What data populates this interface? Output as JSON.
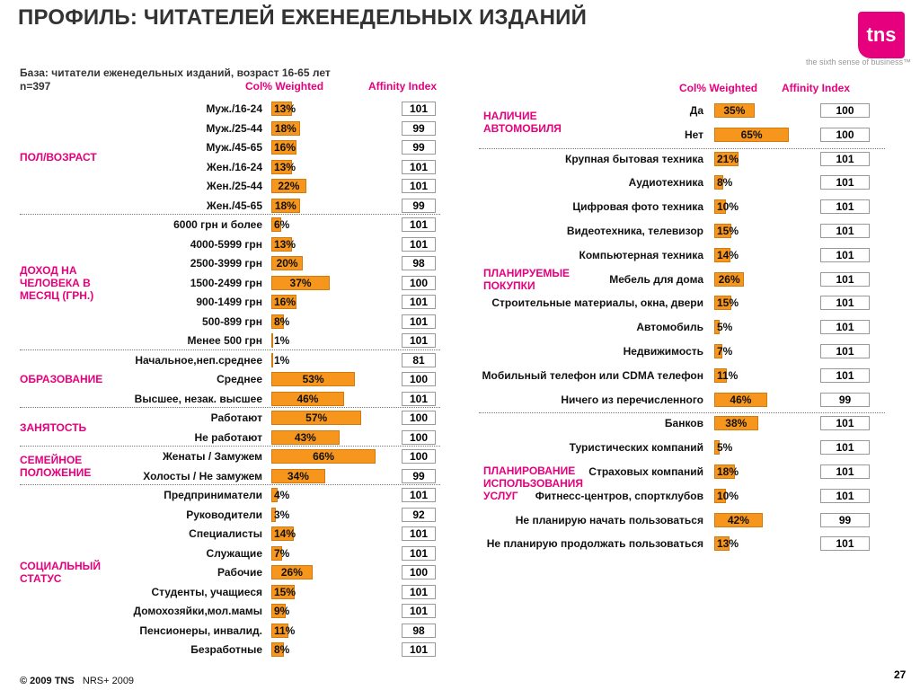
{
  "title": "ПРОФИЛЬ: ЧИТАТЕЛЕЙ ЕЖЕНЕДЕЛЬНЫХ ИЗДАНИЙ",
  "logo": {
    "text": "tns",
    "color": "#e6007e",
    "tagline": "the sixth sense of business™"
  },
  "base": {
    "line1": "База: читатели еженедельных изданий, возраст 16-65 лет",
    "line2": "n=397"
  },
  "headers": {
    "colpct": "Col% Weighted",
    "affinity": "Affinity Index"
  },
  "colors": {
    "bar": "#f7961d",
    "accent": "#e6007e"
  },
  "footer": {
    "copyright": "© 2009 TNS",
    "source": "NRS+ 2009",
    "page": "27"
  },
  "chart_data": {
    "type": "bar",
    "orientation": "horizontal",
    "value_unit": "%",
    "panels": [
      {
        "groups": [
          {
            "label": "ПОЛ/ВОЗРАСТ",
            "rows": [
              {
                "label": "Муж./16-24",
                "value": 13,
                "affinity": 101
              },
              {
                "label": "Муж./25-44",
                "value": 18,
                "affinity": 99
              },
              {
                "label": "Муж./45-65",
                "value": 16,
                "affinity": 99
              },
              {
                "label": "Жен./16-24",
                "value": 13,
                "affinity": 101
              },
              {
                "label": "Жен./25-44",
                "value": 22,
                "affinity": 101
              },
              {
                "label": "Жен./45-65",
                "value": 18,
                "affinity": 99
              }
            ]
          },
          {
            "label": "ДОХОД НА ЧЕЛОВЕКА В МЕСЯЦ (ГРН.)",
            "rows": [
              {
                "label": "6000 грн и более",
                "value": 6,
                "affinity": 101
              },
              {
                "label": "4000-5999 грн",
                "value": 13,
                "affinity": 101
              },
              {
                "label": "2500-3999 грн",
                "value": 20,
                "affinity": 98
              },
              {
                "label": "1500-2499 грн",
                "value": 37,
                "affinity": 100
              },
              {
                "label": "900-1499 грн",
                "value": 16,
                "affinity": 101
              },
              {
                "label": "500-899 грн",
                "value": 8,
                "affinity": 101
              },
              {
                "label": "Менее 500 грн",
                "value": 1,
                "affinity": 101
              }
            ]
          },
          {
            "label": "ОБРАЗОВАНИЕ",
            "rows": [
              {
                "label": "Начальное,неп.среднее",
                "value": 1,
                "affinity": 81
              },
              {
                "label": "Среднее",
                "value": 53,
                "affinity": 100
              },
              {
                "label": "Высшее, незак. высшее",
                "value": 46,
                "affinity": 101
              }
            ]
          },
          {
            "label": "ЗАНЯТОСТЬ",
            "rows": [
              {
                "label": "Работают",
                "value": 57,
                "affinity": 100
              },
              {
                "label": "Не работают",
                "value": 43,
                "affinity": 100
              }
            ]
          },
          {
            "label": "СЕМЕЙНОЕ ПОЛОЖЕНИЕ",
            "rows": [
              {
                "label": "Женаты / Замужем",
                "value": 66,
                "affinity": 100
              },
              {
                "label": "Холосты / Не замужем",
                "value": 34,
                "affinity": 99
              }
            ]
          },
          {
            "label": "СОЦИАЛЬНЫЙ СТАТУС",
            "rows": [
              {
                "label": "Предприниматели",
                "value": 4,
                "affinity": 101
              },
              {
                "label": "Руководители",
                "value": 3,
                "affinity": 92
              },
              {
                "label": "Специалисты",
                "value": 14,
                "affinity": 101
              },
              {
                "label": "Служащие",
                "value": 7,
                "affinity": 101
              },
              {
                "label": "Рабочие",
                "value": 26,
                "affinity": 100
              },
              {
                "label": "Студенты, учащиеся",
                "value": 15,
                "affinity": 101
              },
              {
                "label": "Домохозяйки,мол.мамы",
                "value": 9,
                "affinity": 101
              },
              {
                "label": "Пенсионеры, инвалид.",
                "value": 11,
                "affinity": 98
              },
              {
                "label": "Безработные",
                "value": 8,
                "affinity": 101
              }
            ]
          }
        ]
      },
      {
        "groups": [
          {
            "label": "НАЛИЧИЕ АВТОМОБИЛЯ",
            "rows": [
              {
                "label": "Да",
                "value": 35,
                "affinity": 100
              },
              {
                "label": "Нет",
                "value": 65,
                "affinity": 100
              }
            ]
          },
          {
            "label": "ПЛАНИРУЕМЫЕ ПОКУПКИ",
            "rows": [
              {
                "label": "Крупная бытовая техника",
                "value": 21,
                "affinity": 101
              },
              {
                "label": "Аудиотехника",
                "value": 8,
                "affinity": 101
              },
              {
                "label": "Цифровая фото техника",
                "value": 10,
                "affinity": 101
              },
              {
                "label": "Видеотехника, телевизор",
                "value": 15,
                "affinity": 101
              },
              {
                "label": "Компьютерная техника",
                "value": 14,
                "affinity": 101
              },
              {
                "label": "Мебель для дома",
                "value": 26,
                "affinity": 101
              },
              {
                "label": "Строительные материалы, окна, двери",
                "value": 15,
                "affinity": 101
              },
              {
                "label": "Автомобиль",
                "value": 5,
                "affinity": 101
              },
              {
                "label": "Недвижимость",
                "value": 7,
                "affinity": 101
              },
              {
                "label": "Мобильный телефон или CDMA телефон",
                "value": 11,
                "affinity": 101
              },
              {
                "label": "Ничего из перечисленного",
                "value": 46,
                "affinity": 99
              }
            ]
          },
          {
            "label": "ПЛАНИРОВАНИЕ ИСПОЛЬЗОВАНИЯ УСЛУГ",
            "rows": [
              {
                "label": "Банков",
                "value": 38,
                "affinity": 101
              },
              {
                "label": "Туристических компаний",
                "value": 5,
                "affinity": 101
              },
              {
                "label": "Страховых компаний",
                "value": 18,
                "affinity": 101
              },
              {
                "label": "Фитнесс-центров, спортклубов",
                "value": 10,
                "affinity": 101
              },
              {
                "label": "Не планирую начать пользоваться",
                "value": 42,
                "affinity": 99
              },
              {
                "label": "Не планирую продолжать пользоваться",
                "value": 13,
                "affinity": 101
              }
            ]
          }
        ]
      }
    ]
  }
}
